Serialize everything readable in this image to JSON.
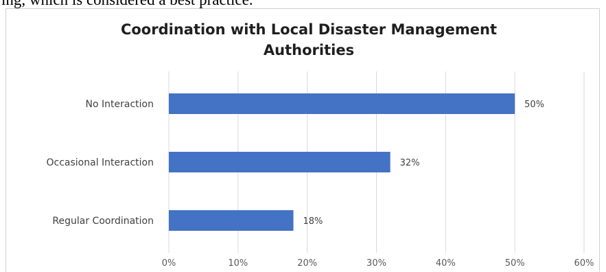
{
  "document": {
    "text_fragment": "ing, which is considered a best practice."
  },
  "chart_data": {
    "type": "bar",
    "orientation": "horizontal",
    "title_lines": [
      "Coordination with Local Disaster Management",
      "Authorities"
    ],
    "categories": [
      "No Interaction",
      "Occasional Interaction",
      "Regular Coordination"
    ],
    "values": [
      50,
      32,
      18
    ],
    "data_labels": [
      "50%",
      "32%",
      "18%"
    ],
    "x_ticks": [
      "0%",
      "10%",
      "20%",
      "30%",
      "40%",
      "50%",
      "60%"
    ],
    "xlim": [
      0,
      60
    ],
    "grid": "vertical",
    "bar_color": "#4472c4",
    "grid_color": "#d9d9d9"
  }
}
